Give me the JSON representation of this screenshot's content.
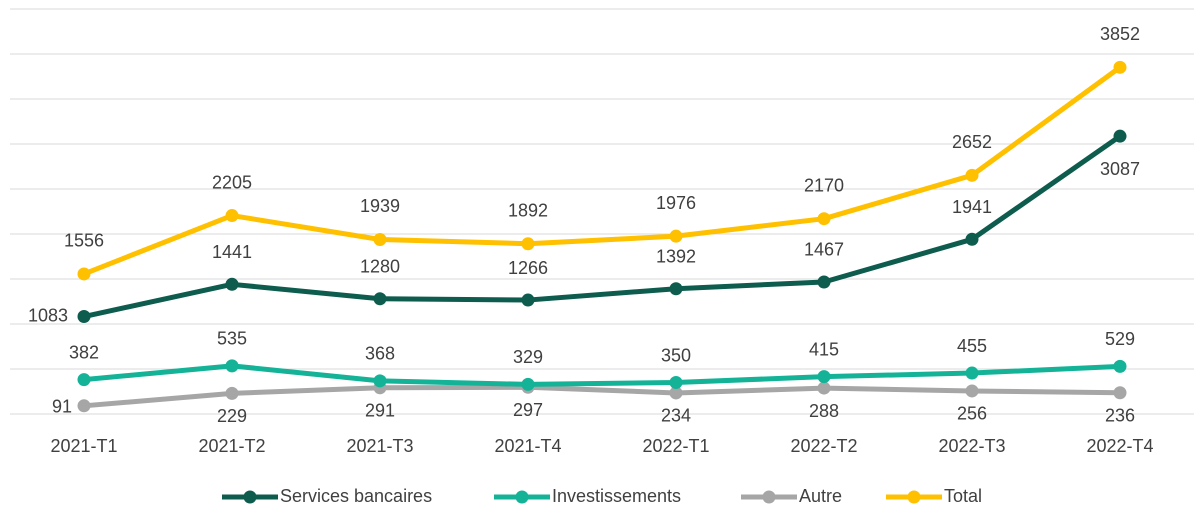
{
  "chart_data": {
    "type": "line",
    "categories": [
      "2021-T1",
      "2021-T2",
      "2021-T3",
      "2021-T4",
      "2022-T1",
      "2022-T2",
      "2022-T3",
      "2022-T4"
    ],
    "series": [
      {
        "name": "Services bancaires",
        "color": "#0d5c4e",
        "values": [
          1083,
          1441,
          1280,
          1266,
          1392,
          1467,
          1941,
          3087
        ]
      },
      {
        "name": "Investissements",
        "color": "#14b398",
        "values": [
          382,
          535,
          368,
          329,
          350,
          415,
          455,
          529
        ]
      },
      {
        "name": "Autre",
        "color": "#a6a6a6",
        "values": [
          91,
          229,
          291,
          297,
          234,
          288,
          256,
          236
        ]
      },
      {
        "name": "Total",
        "color": "#ffc000",
        "values": [
          1556,
          2205,
          1939,
          1892,
          1976,
          2170,
          2652,
          3852
        ]
      }
    ],
    "ylim": [
      0,
      4500
    ],
    "yticks": [
      0,
      500,
      1000,
      1500,
      2000,
      2500,
      3000,
      3500,
      4000,
      4500
    ],
    "grid": true,
    "legend": "bottom"
  }
}
